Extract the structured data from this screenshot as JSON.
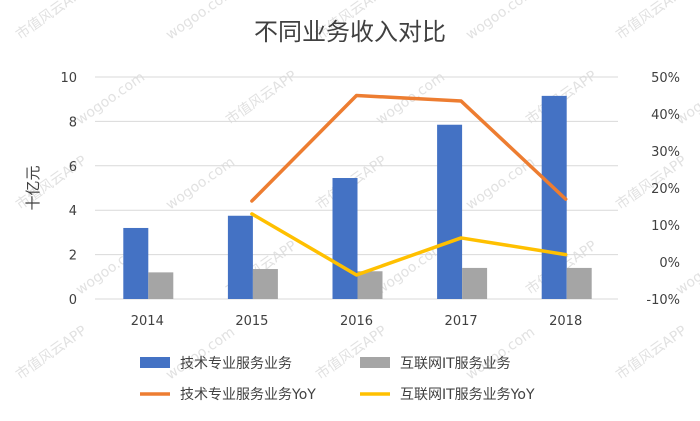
{
  "watermark": "市值风云APP",
  "watermark_url": "wogoo.com",
  "chart_data": {
    "type": "bar",
    "title": "不同业务收入对比",
    "ylabel": "十亿元",
    "categories": [
      "2014",
      "2015",
      "2016",
      "2017",
      "2018"
    ],
    "ylim": [
      0,
      10
    ],
    "y_ticks": [
      "0",
      "2",
      "4",
      "6",
      "8",
      "10"
    ],
    "y2lim": [
      -10,
      50
    ],
    "y2_ticks": [
      "-10%",
      "0%",
      "10%",
      "20%",
      "30%",
      "40%",
      "50%"
    ],
    "grid": true,
    "legend_position": "bottom",
    "series": [
      {
        "name": "技术专业服务业务",
        "kind": "bar",
        "axis": "left",
        "color": "#4472c4",
        "values": [
          3.2,
          3.75,
          5.45,
          7.85,
          9.15
        ]
      },
      {
        "name": "互联网IT服务业务",
        "kind": "bar",
        "axis": "left",
        "color": "#a5a5a5",
        "values": [
          1.2,
          1.35,
          1.25,
          1.4,
          1.4
        ]
      },
      {
        "name": "技术专业服务业务YoY",
        "kind": "line",
        "axis": "right",
        "color": "#ed7d31",
        "values": [
          null,
          16.5,
          45,
          43.5,
          17
        ]
      },
      {
        "name": "互联网IT服务业务YoY",
        "kind": "line",
        "axis": "right",
        "color": "#ffc000",
        "values": [
          null,
          13,
          -3.5,
          6.5,
          2
        ]
      }
    ]
  }
}
